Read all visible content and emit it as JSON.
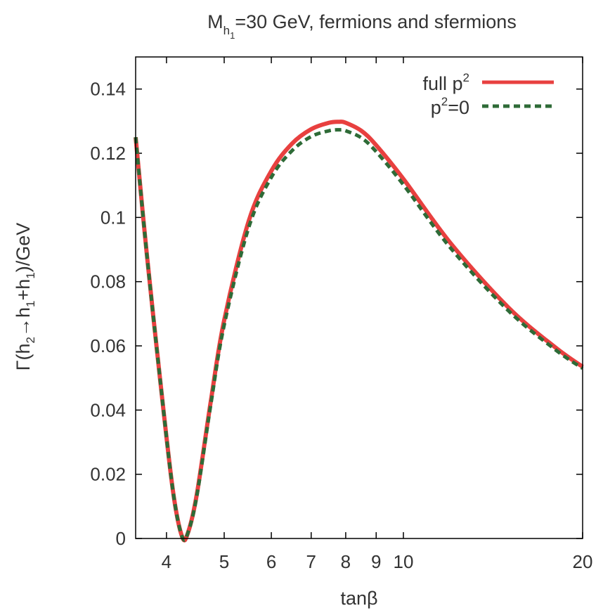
{
  "chart_data": {
    "type": "line",
    "title": {
      "main": "M",
      "sub1": "h",
      "sub2": "1",
      "rest": "=30 GeV, fermions and sfermions"
    },
    "xlabel": "tanβ",
    "ylabel": {
      "part1": "Γ(h",
      "sub_a": "2",
      "part2": "→h",
      "sub_b": "1",
      "part3": "+h",
      "sub_c": "1",
      "part4": ")/GeV"
    },
    "x_scale": "log",
    "xlim": [
      3.55,
      20
    ],
    "ylim": [
      0,
      0.15
    ],
    "x_ticks": [
      4,
      5,
      6,
      7,
      8,
      9,
      10,
      20
    ],
    "x_tick_labels": [
      "4",
      "5",
      "6",
      "7",
      "8",
      "9",
      "10",
      "20"
    ],
    "y_ticks": [
      0,
      0.02,
      0.04,
      0.06,
      0.08,
      0.1,
      0.12,
      0.14
    ],
    "y_tick_labels": [
      "0",
      "0.02",
      "0.04",
      "0.06",
      "0.08",
      "0.1",
      "0.12",
      "0.14"
    ],
    "grid": false,
    "legend_position": "top-right",
    "legend": {
      "full": {
        "text": "full p",
        "sup": "2"
      },
      "zero": {
        "text": "p",
        "sup": "2",
        "tail": "=0"
      }
    },
    "series": [
      {
        "key": "full",
        "color": "#e8403f",
        "dash": "solid",
        "x": [
          3.55,
          3.7,
          3.9,
          4.1,
          4.25,
          4.35,
          4.5,
          4.75,
          5.0,
          5.5,
          6.0,
          6.5,
          7.0,
          7.5,
          7.8,
          8.0,
          8.5,
          9.0,
          10.0,
          12.0,
          15.0,
          18.0,
          20.0
        ],
        "y": [
          0.125,
          0.09,
          0.05,
          0.015,
          0.0005,
          0.002,
          0.014,
          0.043,
          0.068,
          0.099,
          0.1145,
          0.123,
          0.1275,
          0.1295,
          0.1298,
          0.1295,
          0.127,
          0.1225,
          0.112,
          0.092,
          0.072,
          0.0595,
          0.0535
        ]
      },
      {
        "key": "zero",
        "color": "#2e6b37",
        "dash": "dashed",
        "x": [
          3.55,
          3.7,
          3.9,
          4.1,
          4.25,
          4.35,
          4.5,
          4.75,
          5.0,
          5.5,
          6.0,
          6.5,
          7.0,
          7.5,
          7.8,
          8.0,
          8.5,
          9.0,
          10.0,
          12.0,
          15.0,
          18.0,
          20.0
        ],
        "y": [
          0.125,
          0.09,
          0.05,
          0.015,
          0.0005,
          0.002,
          0.0135,
          0.042,
          0.0665,
          0.097,
          0.1125,
          0.1208,
          0.1252,
          0.127,
          0.1273,
          0.127,
          0.1248,
          0.1205,
          0.1102,
          0.0905,
          0.071,
          0.0588,
          0.053
        ]
      }
    ]
  }
}
